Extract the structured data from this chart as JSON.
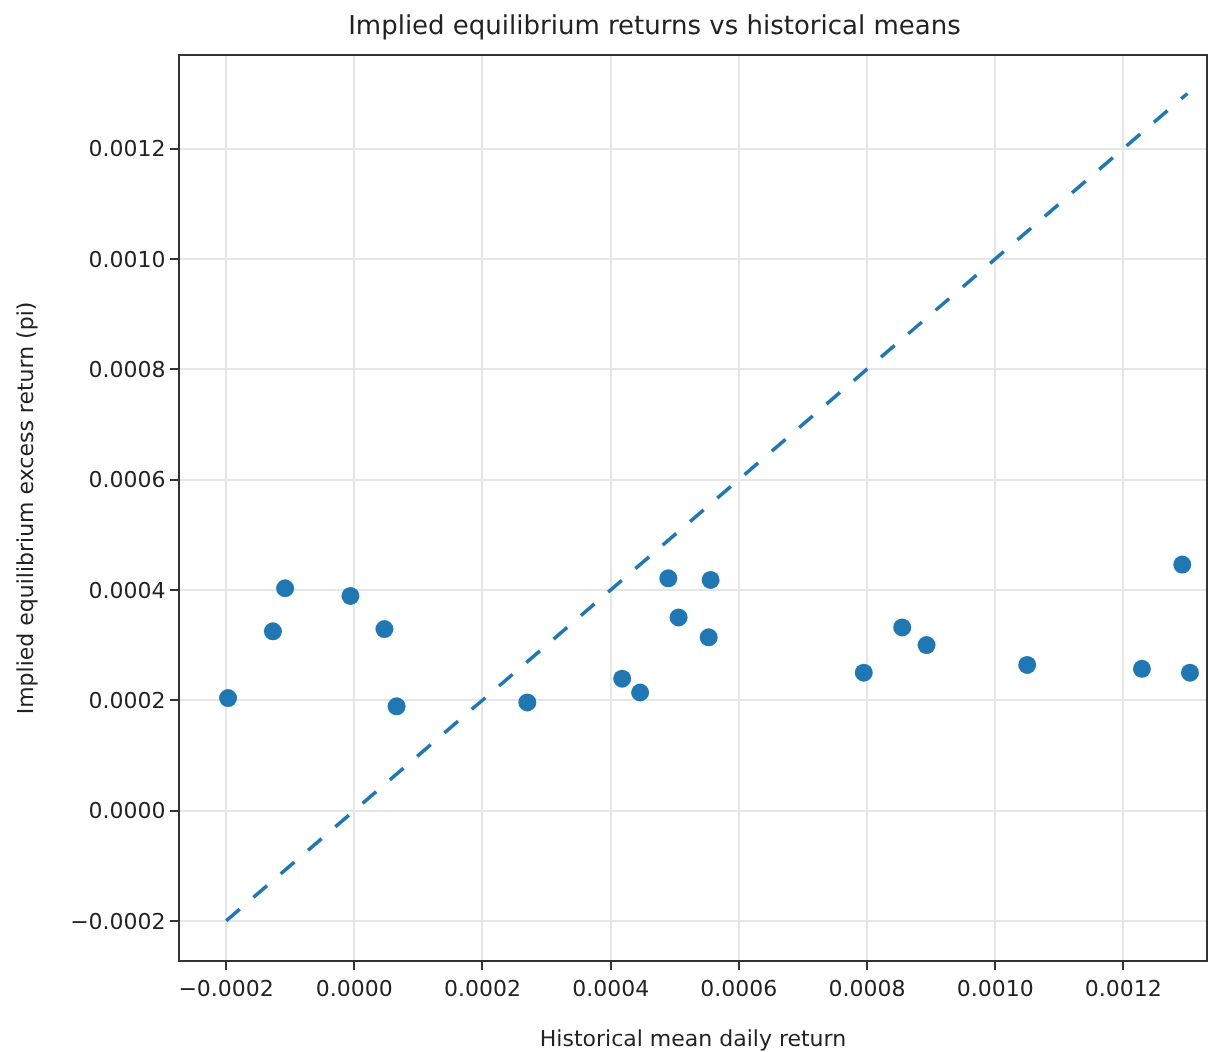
{
  "chart_data": {
    "type": "scatter",
    "title": "Implied equilibrium returns vs historical means",
    "xlabel": "Historical mean daily return",
    "ylabel": "Implied equilibrium excess return (pi)",
    "xlim": [
      -0.000272,
      0.001329
    ],
    "ylim": [
      -0.000271,
      0.001368
    ],
    "xticks": [
      {
        "value": -0.0002,
        "label": "−0.0002"
      },
      {
        "value": 0,
        "label": "0.0000"
      },
      {
        "value": 0.0002,
        "label": "0.0002"
      },
      {
        "value": 0.0004,
        "label": "0.0004"
      },
      {
        "value": 0.0006,
        "label": "0.0006"
      },
      {
        "value": 0.0008,
        "label": "0.0008"
      },
      {
        "value": 0.001,
        "label": "0.0010"
      },
      {
        "value": 0.0012,
        "label": "0.0012"
      }
    ],
    "yticks": [
      {
        "value": -0.0002,
        "label": "−0.0002"
      },
      {
        "value": 0,
        "label": "0.0000"
      },
      {
        "value": 0.0002,
        "label": "0.0002"
      },
      {
        "value": 0.0004,
        "label": "0.0004"
      },
      {
        "value": 0.0006,
        "label": "0.0006"
      },
      {
        "value": 0.0008,
        "label": "0.0008"
      },
      {
        "value": 0.001,
        "label": "0.0010"
      },
      {
        "value": 0.0012,
        "label": "0.0012"
      }
    ],
    "grid": true,
    "marker": "circle",
    "series": [
      {
        "color": "#1f77b4",
        "x": [
          -0.000197,
          -0.000127,
          -0.000108,
          -6e-06,
          4.7e-05,
          6.6e-05,
          0.00027,
          0.000418,
          0.000446,
          0.00049,
          0.000506,
          0.000553,
          0.000556,
          0.000795,
          0.000855,
          0.000893,
          0.00105,
          0.001229,
          0.001292,
          0.001304
        ],
        "values": [
          0.000204,
          0.000325,
          0.000403,
          0.000389,
          0.000329,
          0.000189,
          0.000196,
          0.000239,
          0.000214,
          0.000421,
          0.00035,
          0.000314,
          0.000418,
          0.00025,
          0.000332,
          0.0003,
          0.000264,
          0.000257,
          0.000446,
          0.00025
        ]
      },
      {
        "type": "line",
        "color": "#1f77b4",
        "line_style": "dashed",
        "marker": "none",
        "x": [
          -0.0002,
          0.0013
        ],
        "values": [
          -0.0002,
          0.0013
        ]
      }
    ]
  }
}
